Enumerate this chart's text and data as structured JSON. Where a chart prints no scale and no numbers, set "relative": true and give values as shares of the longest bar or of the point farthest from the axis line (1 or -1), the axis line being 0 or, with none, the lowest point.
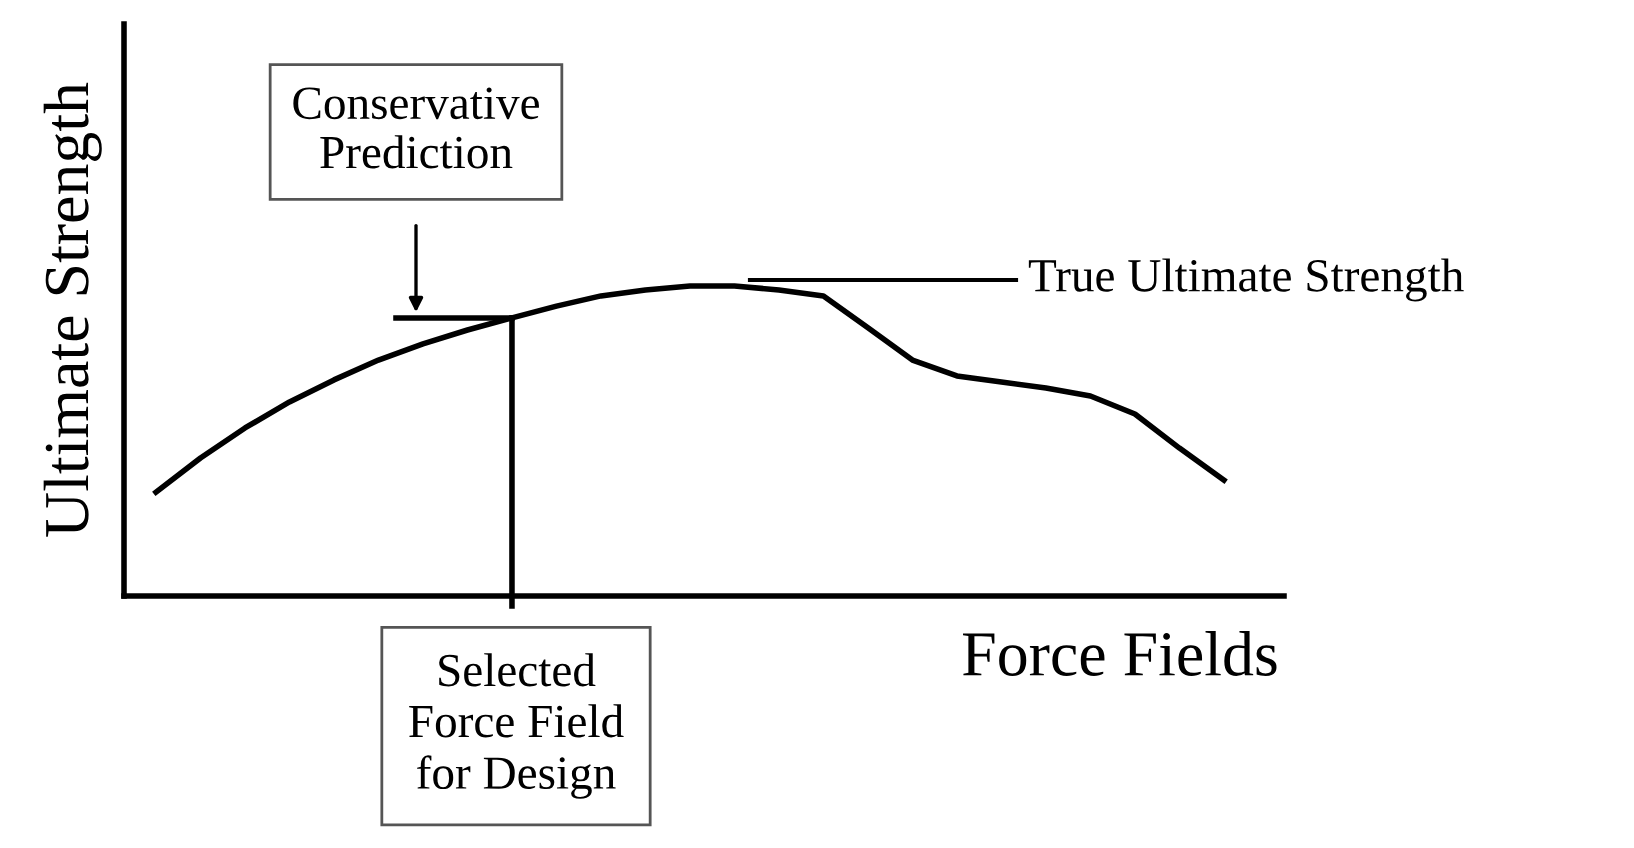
{
  "chart_data": {
    "type": "line",
    "relative": true,
    "xlabel": "Force Fields",
    "ylabel": "Ultimate Strength",
    "categories": [
      null,
      null,
      null,
      null,
      null,
      null,
      null,
      null,
      null,
      null,
      null,
      null,
      null,
      null,
      null,
      null,
      null,
      null,
      null,
      null,
      null,
      null,
      null,
      null,
      null
    ],
    "series": [
      {
        "color": "#000000",
        "values": [
          0.335,
          0.445,
          0.542,
          0.626,
          0.697,
          0.761,
          0.813,
          0.858,
          0.897,
          0.935,
          0.968,
          0.987,
          1,
          1,
          0.987,
          0.968,
          0.865,
          0.761,
          0.71,
          0.69,
          0.671,
          0.645,
          0.587,
          0.477,
          0.374
        ]
      }
    ],
    "annotations": [
      "Conservative\nPrediction",
      "True Ultimate Strength",
      "Selected\nForce Field\nfor Design"
    ],
    "marker": "none",
    "line_style": "solid"
  }
}
